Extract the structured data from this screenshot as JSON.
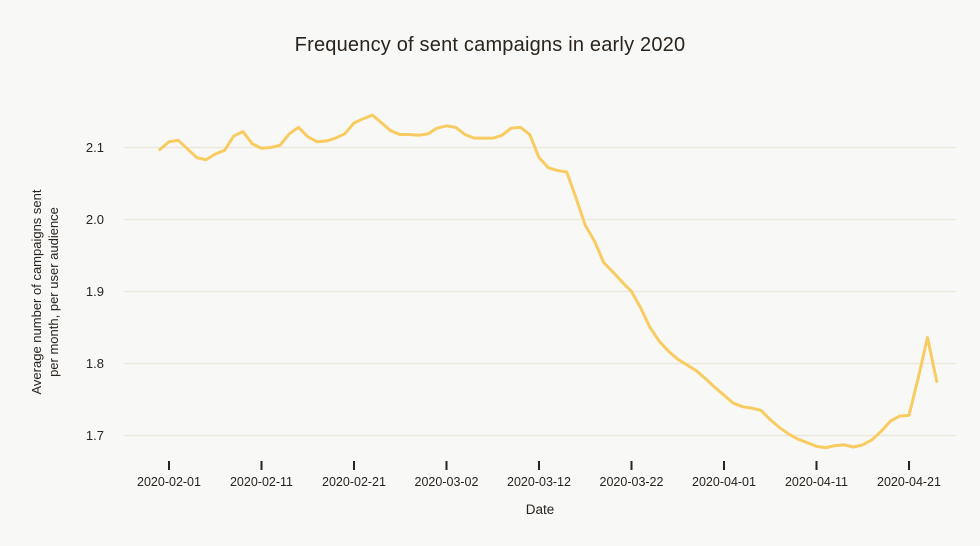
{
  "chart_data": {
    "type": "line",
    "title": "Frequency of sent campaigns in early 2020",
    "xlabel": "Date",
    "ylabel": "Average number of campaigns sent per month, per user audience",
    "ylabel_lines": [
      "Average number of campaigns sent",
      "per month, per user audience"
    ],
    "grid": "horizontal",
    "legend": "none",
    "ylim": [
      1.67,
      2.16
    ],
    "x_tick_labels": [
      "2020-02-01",
      "2020-02-11",
      "2020-02-21",
      "2020-03-02",
      "2020-03-12",
      "2020-03-22",
      "2020-04-01",
      "2020-04-11",
      "2020-04-21"
    ],
    "y_tick_labels": [
      "2.1",
      "2.0",
      "1.9",
      "1.8",
      "1.7"
    ],
    "y_tick_values": [
      2.1,
      2.0,
      1.9,
      1.8,
      1.7
    ],
    "colors": {
      "line": "#f9cc62",
      "background": "#f8f8f6",
      "grid": "#ebe9dd",
      "text": "#29241d",
      "tick": "#29241d"
    },
    "series": [
      {
        "x": [
          "2020-01-31",
          "2020-02-01",
          "2020-02-02",
          "2020-02-03",
          "2020-02-04",
          "2020-02-05",
          "2020-02-06",
          "2020-02-07",
          "2020-02-08",
          "2020-02-09",
          "2020-02-10",
          "2020-02-11",
          "2020-02-12",
          "2020-02-13",
          "2020-02-14",
          "2020-02-15",
          "2020-02-16",
          "2020-02-17",
          "2020-02-18",
          "2020-02-19",
          "2020-02-20",
          "2020-02-21",
          "2020-02-22",
          "2020-02-23",
          "2020-02-24",
          "2020-02-25",
          "2020-02-26",
          "2020-02-27",
          "2020-02-28",
          "2020-02-29",
          "2020-03-01",
          "2020-03-02",
          "2020-03-03",
          "2020-03-04",
          "2020-03-05",
          "2020-03-06",
          "2020-03-07",
          "2020-03-08",
          "2020-03-09",
          "2020-03-10",
          "2020-03-11",
          "2020-03-12",
          "2020-03-13",
          "2020-03-14",
          "2020-03-15",
          "2020-03-16",
          "2020-03-17",
          "2020-03-18",
          "2020-03-19",
          "2020-03-20",
          "2020-03-21",
          "2020-03-22",
          "2020-03-23",
          "2020-03-24",
          "2020-03-25",
          "2020-03-26",
          "2020-03-27",
          "2020-03-28",
          "2020-03-29",
          "2020-03-30",
          "2020-03-31",
          "2020-04-01",
          "2020-04-02",
          "2020-04-03",
          "2020-04-04",
          "2020-04-05",
          "2020-04-06",
          "2020-04-07",
          "2020-04-08",
          "2020-04-09",
          "2020-04-10",
          "2020-04-11",
          "2020-04-12",
          "2020-04-13",
          "2020-04-14",
          "2020-04-15",
          "2020-04-16",
          "2020-04-17",
          "2020-04-18",
          "2020-04-19",
          "2020-04-20",
          "2020-04-21",
          "2020-04-22",
          "2020-04-23",
          "2020-04-24"
        ],
        "y": [
          2.097,
          2.108,
          2.11,
          2.098,
          2.086,
          2.083,
          2.091,
          2.096,
          2.116,
          2.122,
          2.105,
          2.099,
          2.1,
          2.103,
          2.119,
          2.128,
          2.115,
          2.108,
          2.109,
          2.113,
          2.119,
          2.134,
          2.14,
          2.145,
          2.134,
          2.123,
          2.118,
          2.118,
          2.117,
          2.119,
          2.127,
          2.13,
          2.128,
          2.118,
          2.113,
          2.113,
          2.113,
          2.117,
          2.127,
          2.128,
          2.118,
          2.086,
          2.072,
          2.068,
          2.066,
          2.03,
          1.992,
          1.97,
          1.94,
          1.927,
          1.913,
          1.9,
          1.877,
          1.85,
          1.831,
          1.817,
          1.806,
          1.798,
          1.79,
          1.779,
          1.767,
          1.756,
          1.745,
          1.74,
          1.738,
          1.735,
          1.722,
          1.711,
          1.702,
          1.695,
          1.69,
          1.685,
          1.683,
          1.686,
          1.687,
          1.684,
          1.687,
          1.694,
          1.706,
          1.72,
          1.727,
          1.728,
          1.78,
          1.836,
          1.775
        ]
      }
    ]
  }
}
